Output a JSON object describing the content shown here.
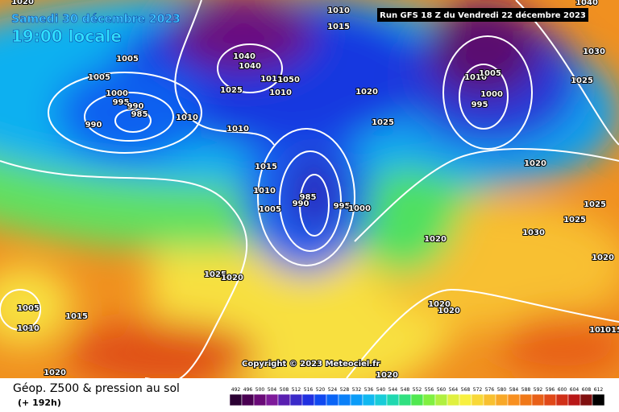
{
  "header": {
    "date": "Samedi 30 décembre 2023",
    "time": "19:00 locale",
    "run": "Run GFS 18 Z du Vendredi 22 décembre 2023"
  },
  "copyright": "Copyright © 2023 Meteociel.fr",
  "legend": {
    "title": "Géop. Z500 & pression au sol",
    "lead": "(+ 192h)",
    "scale": {
      "labels": [
        492,
        496,
        500,
        504,
        508,
        512,
        516,
        520,
        524,
        528,
        532,
        536,
        540,
        544,
        548,
        552,
        556,
        560,
        564,
        568,
        572,
        576,
        580,
        584,
        588,
        592,
        596,
        600,
        604,
        608,
        612
      ],
      "colors": [
        "#2b0033",
        "#4a0052",
        "#6a0a78",
        "#7e1a9a",
        "#5a1fb0",
        "#3a2ac8",
        "#2030e0",
        "#1048f0",
        "#0a64f6",
        "#0a80f8",
        "#0a9cf8",
        "#10b8f0",
        "#18ccd8",
        "#20d8b0",
        "#30e080",
        "#50e850",
        "#80f040",
        "#b0f040",
        "#e0f040",
        "#f8f040",
        "#f8d838",
        "#f8c030",
        "#f8a828",
        "#f89020",
        "#f07818",
        "#e86018",
        "#e04818",
        "#d03018",
        "#b81818",
        "#801010",
        "#000000"
      ]
    }
  },
  "isobar_labels": [
    1020,
    1010,
    1015,
    1040,
    1030,
    1025,
    1005,
    1005,
    1000,
    995,
    990,
    985,
    990,
    1010,
    1040,
    1040,
    1025,
    1015,
    1050,
    1010,
    1010,
    1020,
    1025,
    1010,
    1005,
    1000,
    995,
    1015,
    1010,
    985,
    990,
    1005,
    995,
    1000,
    1020,
    1020,
    1025,
    1025,
    1030,
    1020,
    1025,
    1020,
    1005,
    1010,
    1015,
    1020,
    1020,
    1010,
    1015,
    1020,
    1020
  ]
}
